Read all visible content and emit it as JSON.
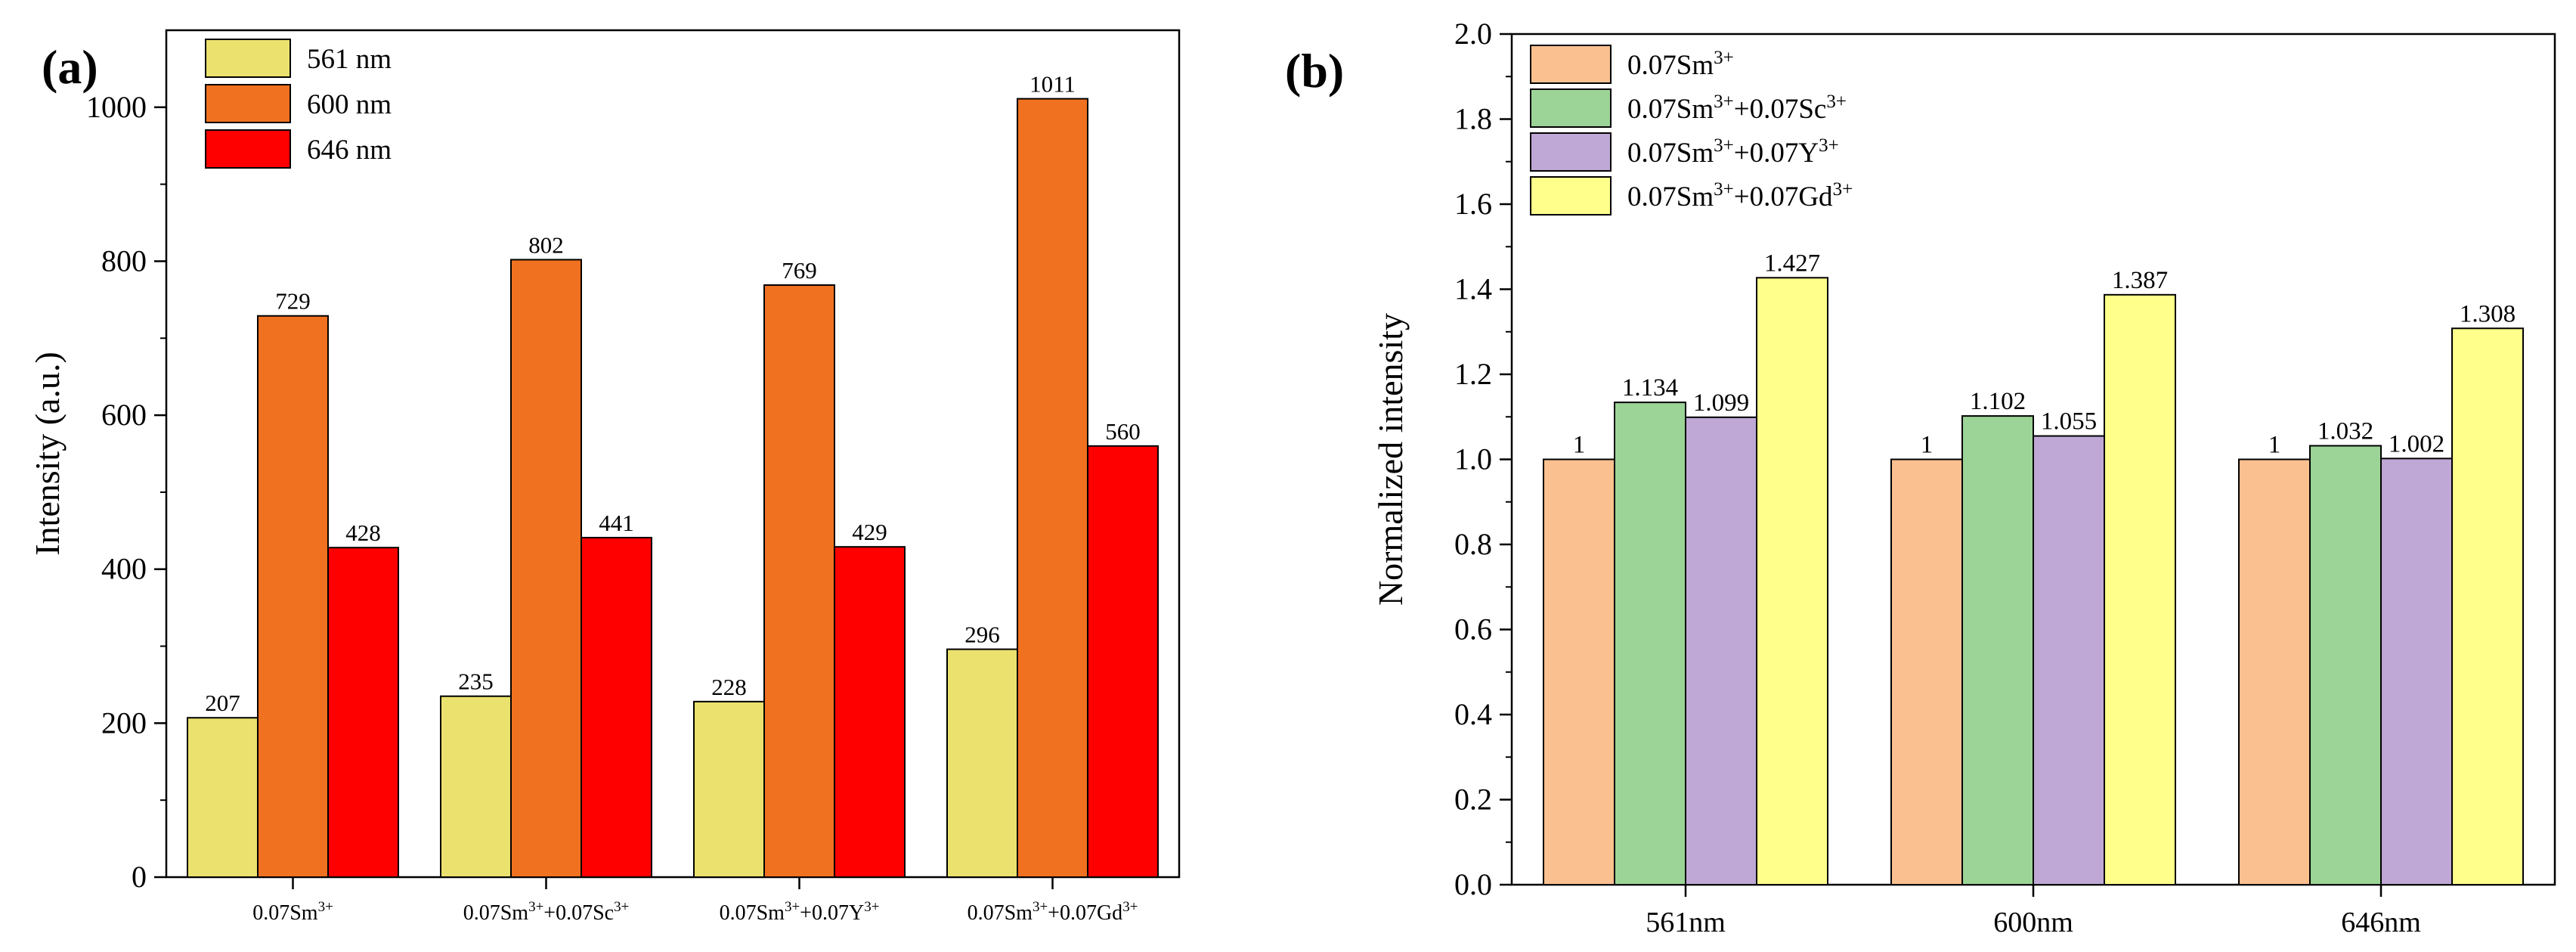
{
  "chart_data": [
    {
      "panel_label": "(a)",
      "type": "bar",
      "title": "",
      "xlabel": "",
      "ylabel": "Intensity (a.u.)",
      "ylim": [
        0,
        1100
      ],
      "yticks": [
        0,
        200,
        400,
        600,
        800,
        1000
      ],
      "ytick_labels": [
        "0",
        "200",
        "400",
        "600",
        "800",
        "1000"
      ],
      "categories": [
        "0.07Sm3+",
        "0.07Sm3++0.07Sc3+",
        "0.07Sm3++0.07Y3+",
        "0.07Sm3++0.07Gd3+"
      ],
      "series": [
        {
          "name": "561 nm",
          "color": "#EAE16E",
          "values": [
            207,
            235,
            228,
            296
          ],
          "labels": [
            "207",
            "235",
            "228",
            "296"
          ]
        },
        {
          "name": "600 nm",
          "color": "#F07120",
          "values": [
            729,
            802,
            769,
            1011
          ],
          "labels": [
            "729",
            "802",
            "769",
            "1011"
          ]
        },
        {
          "name": "646 nm",
          "color": "#FF0000",
          "values": [
            428,
            441,
            429,
            560
          ],
          "labels": [
            "428",
            "441",
            "429",
            "560"
          ]
        }
      ],
      "legend_position": "top-left",
      "grid": false
    },
    {
      "panel_label": "(b)",
      "type": "bar",
      "title": "",
      "xlabel": "",
      "ylabel": "Normalized intensity",
      "ylim": [
        0,
        2.0
      ],
      "yticks": [
        0,
        0.2,
        0.4,
        0.6,
        0.8,
        1.0,
        1.2,
        1.4,
        1.6,
        1.8,
        2.0
      ],
      "ytick_labels": [
        "0.0",
        "0.2",
        "0.4",
        "0.6",
        "0.8",
        "1.0",
        "1.2",
        "1.4",
        "1.6",
        "1.8",
        "2.0"
      ],
      "categories": [
        "561nm",
        "600nm",
        "646nm"
      ],
      "series": [
        {
          "name": "0.07Sm3+",
          "color": "#FAC090",
          "values": [
            1,
            1,
            1
          ],
          "labels": [
            "1",
            "1",
            "1"
          ]
        },
        {
          "name": "0.07Sm3++0.07Sc3+",
          "color": "#9BD496",
          "values": [
            1.134,
            1.102,
            1.032
          ],
          "labels": [
            "1.134",
            "1.102",
            "1.032"
          ]
        },
        {
          "name": "0.07Sm3++0.07Y3+",
          "color": "#BFA8D6",
          "values": [
            1.099,
            1.055,
            1.002
          ],
          "labels": [
            "1.099",
            "1.055",
            "1.002"
          ]
        },
        {
          "name": "0.07Sm3++0.07Gd3+",
          "color": "#FFFF8C",
          "values": [
            1.427,
            1.387,
            1.308
          ],
          "labels": [
            "1.427",
            "1.387",
            "1.308"
          ]
        }
      ],
      "legend_position": "top-left",
      "grid": false
    }
  ]
}
